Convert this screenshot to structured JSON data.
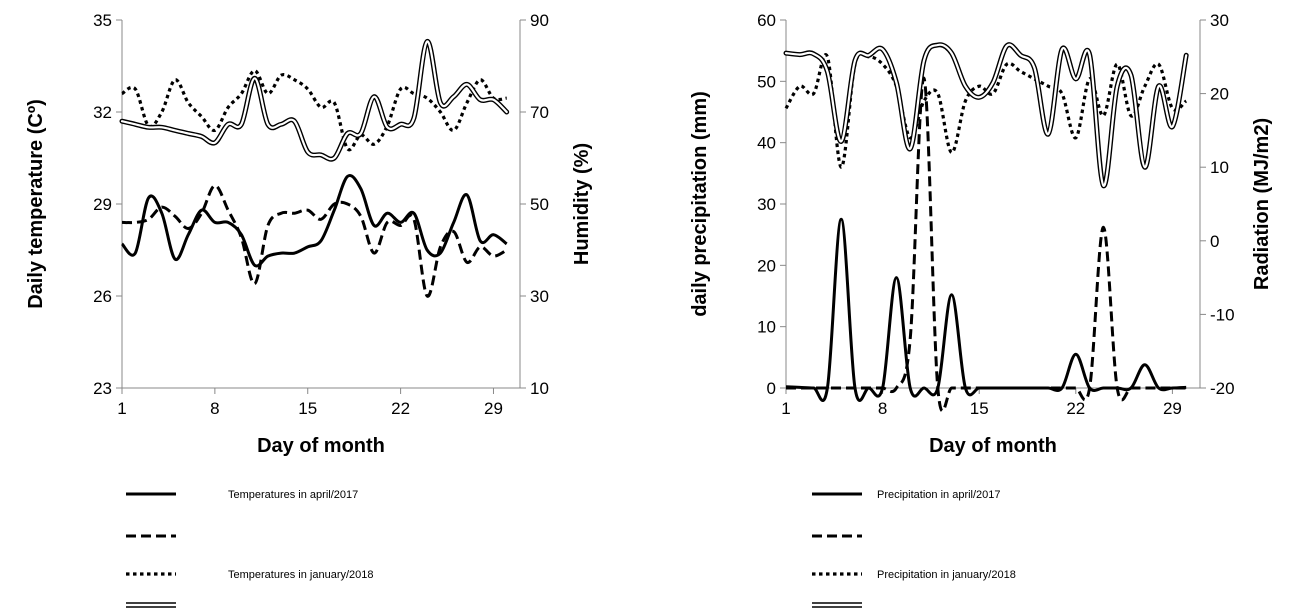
{
  "chart_data": [
    {
      "type": "line",
      "xlabel": "Day of month",
      "ylabel": "Daily temperature (Cº)",
      "y2label": "Humidity (%)",
      "xlim": [
        1,
        31
      ],
      "ylim": [
        23,
        35
      ],
      "y2lim": [
        10,
        90
      ],
      "xticks": [
        1,
        8,
        15,
        22,
        29
      ],
      "yticks": [
        23,
        26,
        29,
        32,
        35
      ],
      "y2ticks": [
        10,
        30,
        50,
        70,
        90
      ],
      "grid": false,
      "legend_position": "bottom",
      "legend_labels": [
        "Temperatures in april/2017",
        "",
        "Temperatures in january/2018",
        ""
      ],
      "series": [
        {
          "style": "solid",
          "axis": "left",
          "x": [
            1,
            2,
            3,
            4,
            5,
            6,
            7,
            8,
            9,
            10,
            11,
            12,
            13,
            14,
            15,
            16,
            17,
            18,
            19,
            20,
            21,
            22,
            23,
            24,
            25,
            26,
            27,
            28,
            29,
            30
          ],
          "values": [
            27.7,
            27.4,
            29.2,
            28.7,
            27.2,
            28.0,
            28.8,
            28.4,
            28.4,
            28.0,
            27.0,
            27.3,
            27.4,
            27.4,
            27.6,
            27.8,
            28.8,
            29.9,
            29.5,
            28.3,
            28.7,
            28.4,
            28.7,
            27.5,
            27.4,
            28.4,
            29.3,
            27.8,
            28.0,
            27.7
          ]
        },
        {
          "style": "dashed",
          "axis": "left",
          "x": [
            1,
            2,
            3,
            4,
            5,
            6,
            7,
            8,
            9,
            10,
            11,
            12,
            13,
            14,
            15,
            16,
            17,
            18,
            19,
            20,
            21,
            22,
            23,
            24,
            25,
            26,
            27,
            28,
            29,
            30
          ],
          "values": [
            28.4,
            28.4,
            28.5,
            28.9,
            28.6,
            28.2,
            28.7,
            29.6,
            28.8,
            27.9,
            26.4,
            28.3,
            28.7,
            28.7,
            28.8,
            28.5,
            29.0,
            29.0,
            28.6,
            27.4,
            28.4,
            28.3,
            28.5,
            26.0,
            27.6,
            28.1,
            27.1,
            27.6,
            27.3,
            27.5
          ]
        },
        {
          "style": "dotted",
          "axis": "right",
          "x": [
            1,
            2,
            3,
            4,
            5,
            6,
            7,
            8,
            9,
            10,
            11,
            12,
            13,
            14,
            15,
            16,
            17,
            18,
            19,
            20,
            21,
            22,
            23,
            24,
            25,
            26,
            27,
            28,
            29,
            30
          ],
          "values": [
            74,
            75,
            67,
            70,
            77,
            72,
            69,
            66,
            71,
            74,
            79,
            74,
            78,
            77,
            75,
            71,
            72,
            62,
            65,
            63,
            67,
            75,
            74,
            73,
            70,
            66,
            72,
            77,
            73,
            73
          ]
        },
        {
          "style": "double",
          "axis": "left",
          "x": [
            1,
            2,
            3,
            4,
            5,
            6,
            7,
            8,
            9,
            10,
            11,
            12,
            13,
            14,
            15,
            16,
            17,
            18,
            19,
            20,
            21,
            22,
            23,
            24,
            25,
            26,
            27,
            28,
            29,
            30
          ],
          "values": [
            31.7,
            31.6,
            31.5,
            31.5,
            31.4,
            31.3,
            31.2,
            31.0,
            31.6,
            31.6,
            33.1,
            31.6,
            31.6,
            31.7,
            30.7,
            30.6,
            30.5,
            31.3,
            31.3,
            32.5,
            31.5,
            31.6,
            31.8,
            34.3,
            32.3,
            32.5,
            32.9,
            32.4,
            32.4,
            32.0
          ]
        }
      ]
    },
    {
      "type": "line",
      "xlabel": "Day of month",
      "ylabel": "daily precipitation (mm)",
      "y2label": "Radiation (MJ/m2)",
      "xlim": [
        1,
        31
      ],
      "ylim": [
        0,
        60
      ],
      "y2lim": [
        -20,
        30
      ],
      "xticks": [
        1,
        8,
        15,
        22,
        29
      ],
      "yticks": [
        0,
        10,
        20,
        30,
        40,
        50,
        60
      ],
      "y2ticks": [
        -20,
        -10,
        0,
        10,
        20,
        30
      ],
      "grid": false,
      "legend_position": "bottom",
      "legend_labels": [
        "Precipitation in april/2017",
        "",
        "Precipitation in january/2018",
        ""
      ],
      "series": [
        {
          "style": "solid",
          "axis": "left",
          "x": [
            1,
            2,
            3,
            4,
            5,
            6,
            7,
            8,
            9,
            10,
            11,
            12,
            13,
            14,
            15,
            16,
            17,
            18,
            19,
            20,
            21,
            22,
            23,
            24,
            25,
            26,
            27,
            28,
            29,
            30
          ],
          "values": [
            0.2,
            0.1,
            0,
            0,
            27.5,
            0,
            0,
            0,
            18.0,
            0,
            0,
            0,
            15.2,
            0,
            0,
            0,
            0,
            0,
            0,
            0,
            0,
            5.5,
            0,
            0,
            0,
            0,
            3.8,
            0,
            0,
            0.1
          ]
        },
        {
          "style": "dashed",
          "axis": "left",
          "x": [
            1,
            2,
            3,
            4,
            5,
            6,
            7,
            8,
            9,
            10,
            11,
            12,
            13,
            14,
            15,
            16,
            17,
            18,
            19,
            20,
            21,
            22,
            23,
            24,
            25,
            26,
            27,
            28,
            29,
            30
          ],
          "values": [
            0,
            0,
            0,
            0,
            0,
            0,
            0,
            0,
            0,
            8,
            50.5,
            0,
            0,
            0,
            0,
            0,
            0,
            0,
            0,
            0,
            0,
            0,
            0,
            26.2,
            0,
            0,
            0,
            0,
            0,
            0
          ]
        },
        {
          "style": "dotted",
          "axis": "right",
          "x": [
            1,
            2,
            3,
            4,
            5,
            6,
            7,
            8,
            9,
            10,
            11,
            12,
            13,
            14,
            15,
            16,
            17,
            18,
            19,
            20,
            21,
            22,
            23,
            24,
            25,
            26,
            27,
            28,
            29,
            30
          ],
          "values": [
            18,
            21,
            20,
            25,
            10,
            24,
            25,
            24,
            21,
            14,
            19,
            20,
            12,
            19,
            21,
            20,
            24,
            23,
            22,
            21,
            20,
            14,
            22,
            17,
            24,
            17,
            21,
            24,
            18,
            19
          ]
        },
        {
          "style": "double",
          "axis": "right",
          "x": [
            1,
            2,
            3,
            4,
            5,
            6,
            7,
            8,
            9,
            10,
            11,
            12,
            13,
            14,
            15,
            16,
            17,
            18,
            19,
            20,
            21,
            22,
            23,
            24,
            25,
            26,
            27,
            28,
            29,
            30
          ],
          "values": [
            25.5,
            25.3,
            25.4,
            23.0,
            13.5,
            24.5,
            25.2,
            26.0,
            21.5,
            12.5,
            24.5,
            26.6,
            25.5,
            21.0,
            19.5,
            21.5,
            26.5,
            25.2,
            23.5,
            14.5,
            26.0,
            22.0,
            25.3,
            7.5,
            21.0,
            22.5,
            10.0,
            21.0,
            15.5,
            25.2
          ]
        }
      ]
    }
  ]
}
